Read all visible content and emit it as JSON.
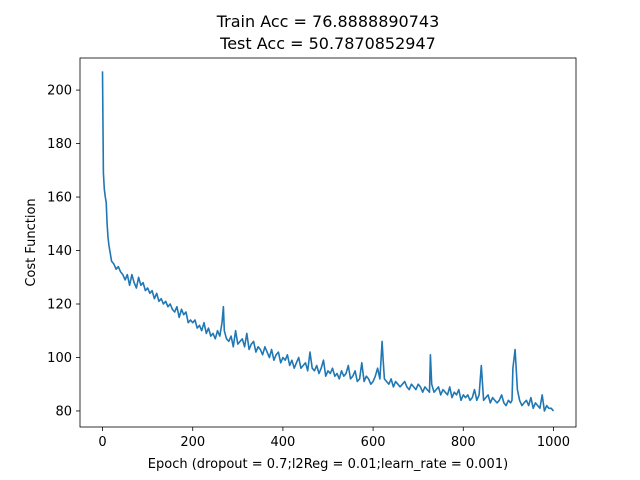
{
  "chart_data": {
    "type": "line",
    "title": "Train Acc = 76.8888890743",
    "subtitle": "Test Acc = 50.7870852947",
    "xlabel": "Epoch (dropout = 0.7;l2Reg = 0.01;learn_rate = 0.001)",
    "ylabel": "Cost Function",
    "xlim": [
      -50,
      1050
    ],
    "ylim": [
      74,
      212
    ],
    "xticks": [
      0,
      200,
      400,
      600,
      800,
      1000
    ],
    "yticks": [
      80,
      100,
      120,
      140,
      160,
      180,
      200
    ],
    "grid": false,
    "series_color": "#1f77b4",
    "series": [
      {
        "x": [
          0,
          2,
          4,
          6,
          8,
          10,
          12,
          14,
          16,
          18,
          20,
          25,
          30,
          35,
          40,
          45,
          50,
          55,
          60,
          65,
          70,
          75,
          80,
          85,
          90,
          95,
          100,
          105,
          110,
          115,
          120,
          125,
          130,
          135,
          140,
          145,
          150,
          155,
          160,
          165,
          170,
          175,
          180,
          185,
          190,
          195,
          200,
          205,
          210,
          215,
          220,
          225,
          230,
          235,
          240,
          245,
          250,
          255,
          260,
          265,
          268,
          270,
          275,
          280,
          285,
          290,
          295,
          300,
          305,
          310,
          315,
          320,
          325,
          330,
          335,
          340,
          345,
          350,
          355,
          360,
          365,
          370,
          375,
          380,
          385,
          390,
          395,
          400,
          405,
          410,
          415,
          420,
          425,
          430,
          435,
          440,
          445,
          450,
          455,
          460,
          465,
          470,
          475,
          480,
          485,
          490,
          495,
          500,
          505,
          510,
          515,
          520,
          525,
          530,
          535,
          540,
          545,
          550,
          555,
          560,
          565,
          570,
          575,
          580,
          585,
          590,
          595,
          600,
          605,
          610,
          615,
          620,
          622,
          625,
          630,
          635,
          640,
          645,
          650,
          655,
          660,
          665,
          670,
          675,
          680,
          685,
          690,
          695,
          700,
          705,
          710,
          715,
          720,
          725,
          727,
          730,
          735,
          740,
          745,
          750,
          755,
          760,
          765,
          770,
          775,
          780,
          785,
          790,
          795,
          800,
          805,
          810,
          815,
          820,
          825,
          830,
          835,
          840,
          845,
          850,
          855,
          860,
          865,
          870,
          875,
          880,
          885,
          890,
          895,
          900,
          905,
          908,
          910,
          915,
          920,
          925,
          930,
          935,
          940,
          945,
          950,
          955,
          960,
          965,
          970,
          975,
          980,
          985,
          990,
          995,
          1000
        ],
        "values": [
          207,
          169,
          163,
          160,
          158,
          150,
          145,
          142,
          140,
          138,
          136,
          135,
          133,
          134,
          132,
          131,
          129,
          131,
          127,
          131,
          128,
          126,
          130,
          127,
          128,
          125,
          126,
          124,
          125,
          122,
          124,
          121,
          122,
          120,
          121,
          119,
          120,
          118,
          117,
          119,
          115,
          118,
          116,
          117,
          113,
          114,
          113,
          114,
          111,
          112,
          110,
          113,
          109,
          111,
          108,
          109,
          107,
          110,
          108,
          113,
          119,
          110,
          107,
          106,
          108,
          104,
          110,
          105,
          106,
          107,
          104,
          109,
          103,
          105,
          106,
          102,
          104,
          103,
          101,
          104,
          102,
          100,
          103,
          99,
          101,
          102,
          98,
          100,
          99,
          101,
          97,
          99,
          96,
          98,
          100,
          96,
          97,
          98,
          95,
          102,
          96,
          95,
          97,
          94,
          96,
          99,
          93,
          95,
          94,
          96,
          93,
          94,
          92,
          95,
          93,
          94,
          97,
          92,
          93,
          95,
          91,
          92,
          98,
          91,
          93,
          92,
          90,
          91,
          93,
          96,
          92,
          106,
          100,
          92,
          91,
          90,
          92,
          89,
          91,
          90,
          89,
          90,
          91,
          89,
          88,
          90,
          89,
          88,
          90,
          89,
          87,
          89,
          88,
          87,
          101,
          90,
          87,
          88,
          89,
          86,
          88,
          87,
          86,
          89,
          85,
          87,
          86,
          88,
          84,
          86,
          85,
          86,
          84,
          85,
          88,
          84,
          86,
          97,
          84,
          85,
          86,
          83,
          85,
          84,
          83,
          84,
          86,
          83,
          82,
          84,
          83,
          84,
          96,
          103,
          88,
          84,
          82,
          83,
          84,
          82,
          85,
          81,
          83,
          82,
          81,
          86,
          80,
          82,
          81,
          81,
          80
        ]
      }
    ]
  }
}
